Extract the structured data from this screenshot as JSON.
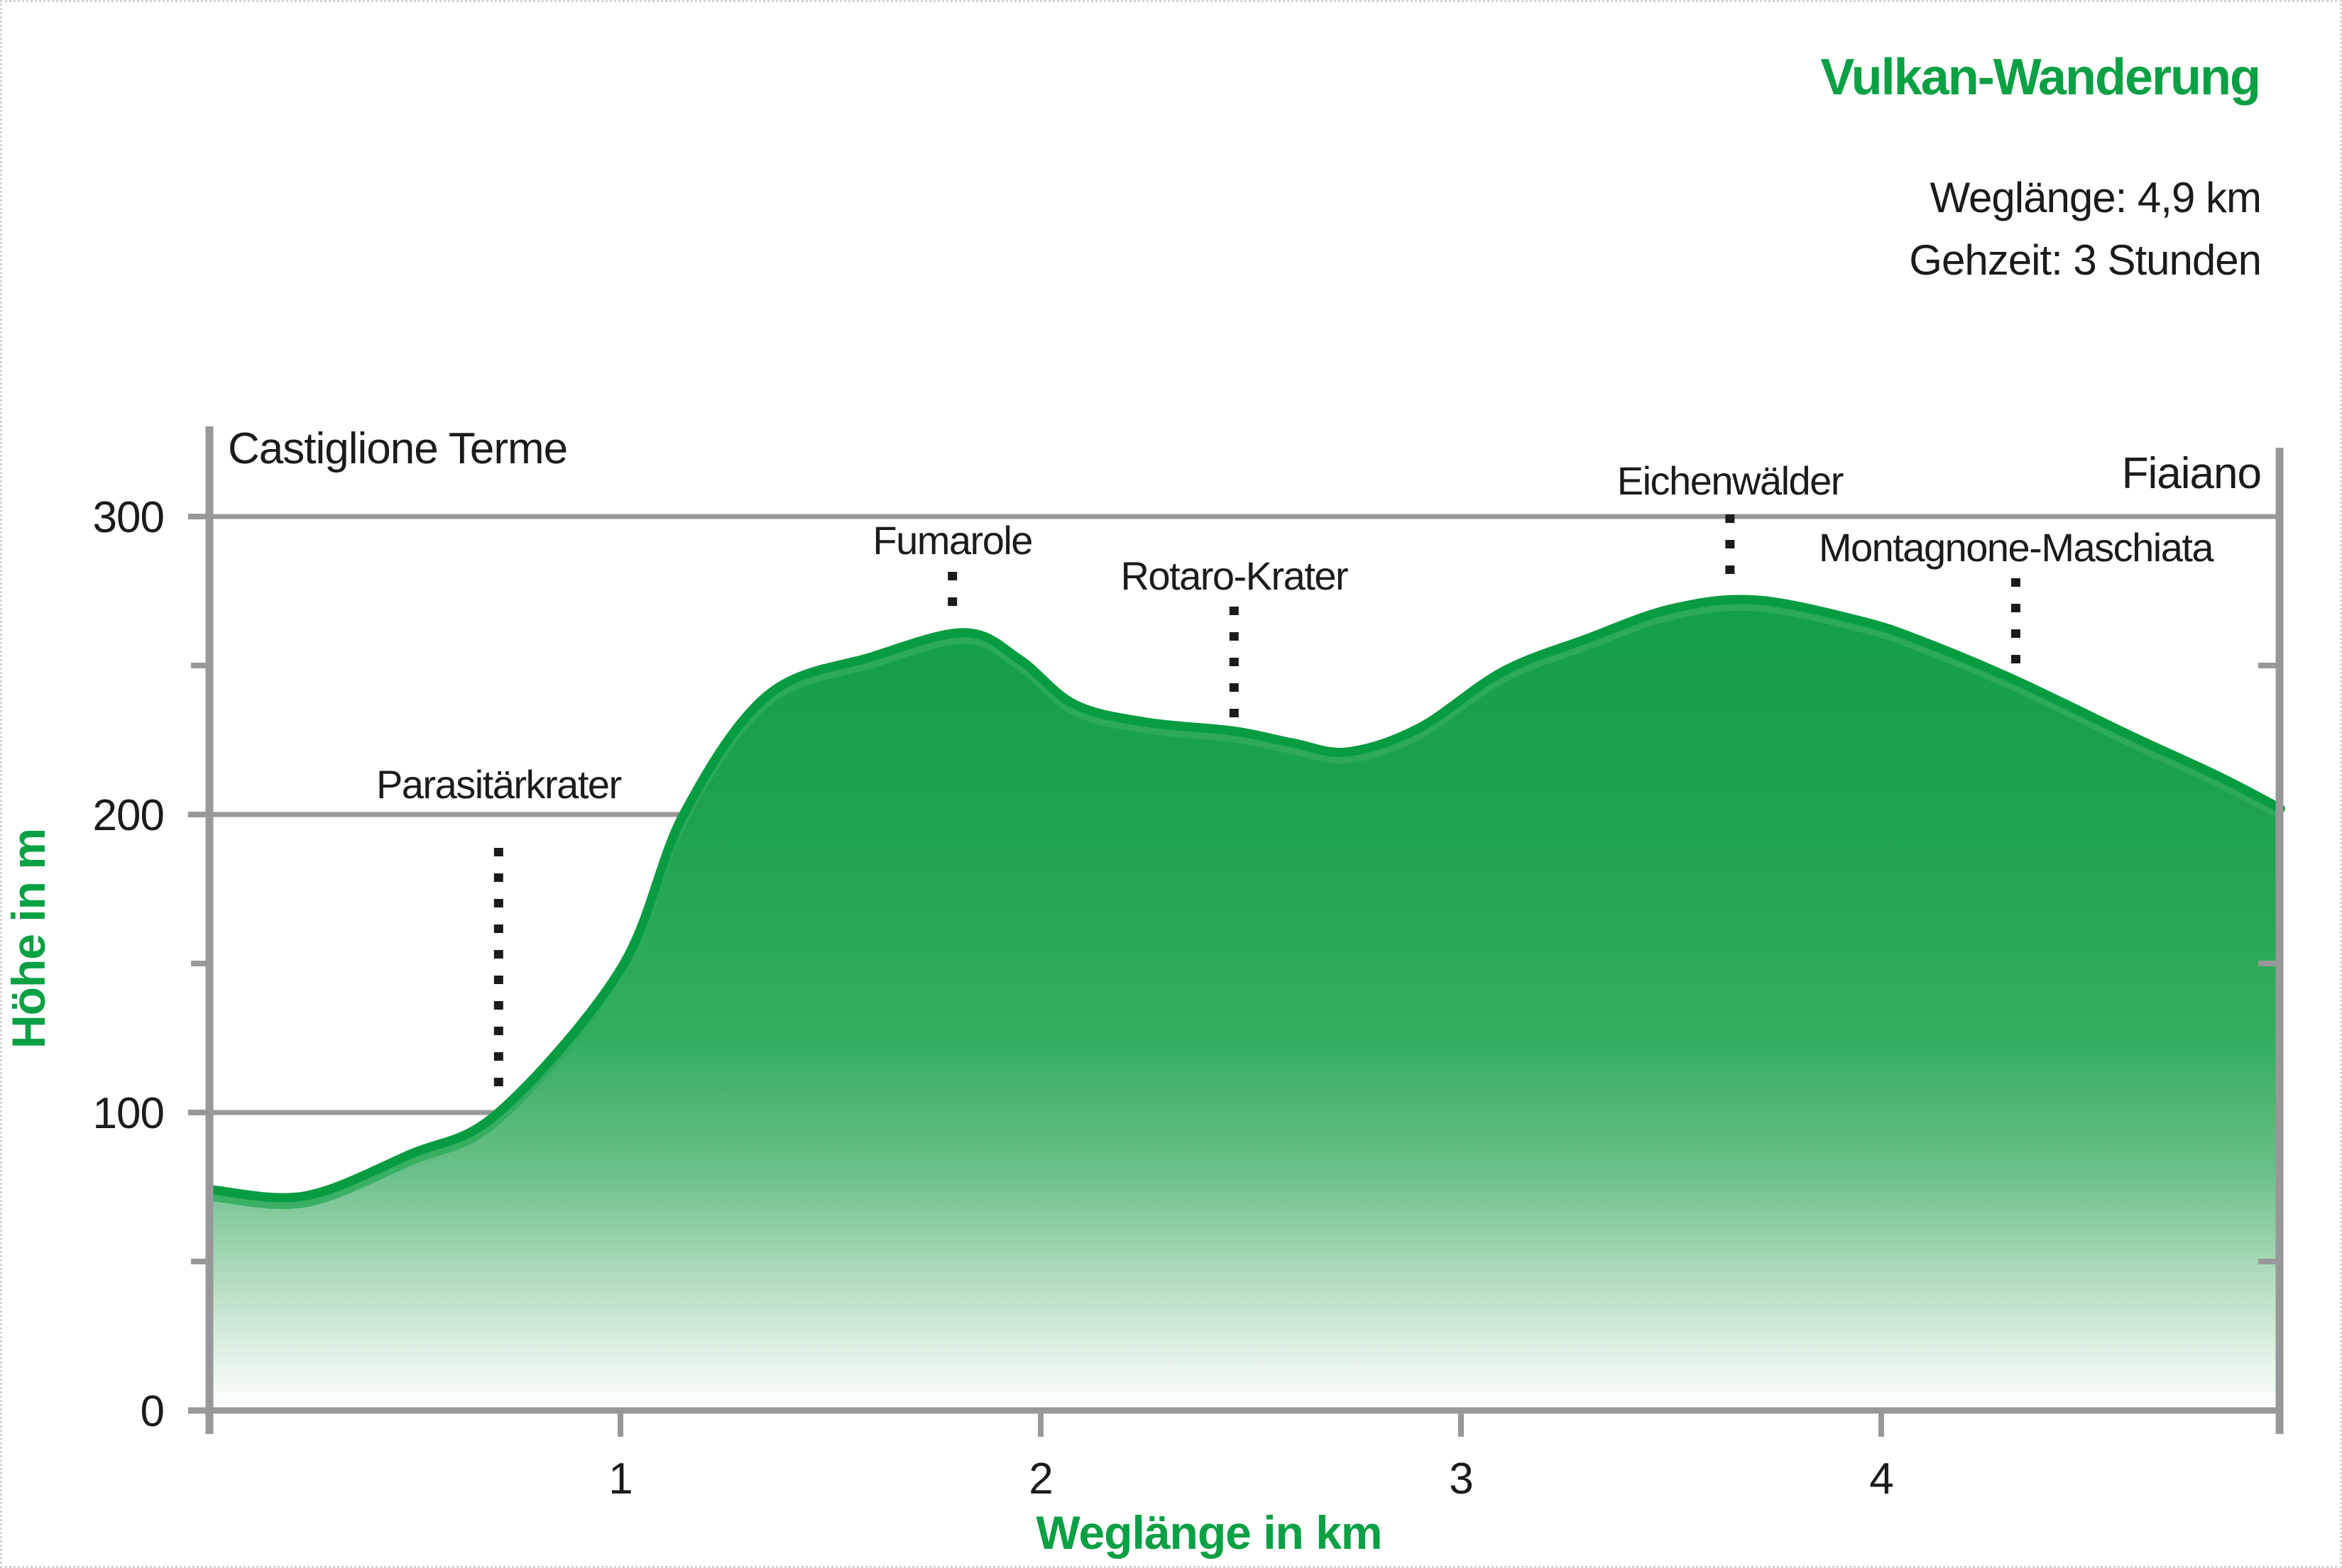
{
  "page": {
    "background": "#FFFFFF",
    "border_color": "#D3D3D3"
  },
  "header": {
    "title": "Vulkan-Wanderung",
    "route_length_line": "Weglänge: 4,9 km",
    "walking_time_line": "Gehzeit: 3 Stunden"
  },
  "chart_data": {
    "type": "area",
    "title": "Vulkan-Wanderung",
    "xlabel": "Weglänge in km",
    "ylabel": "Höhe in m",
    "xlim": [
      0,
      4.95
    ],
    "ylim": [
      0,
      330
    ],
    "x_ticks": [
      1,
      2,
      3,
      4
    ],
    "y_ticks_major": [
      0,
      100,
      200,
      300
    ],
    "y_ticks_minor": [
      50,
      150,
      250
    ],
    "grid": "horizontal-major",
    "legend": "none",
    "start_point_label": "Castiglione Terme",
    "end_point_label": "Fiaiano",
    "route_length_km": 4.9,
    "walking_time_hours": 3,
    "profile_km_m": [
      [
        0.03,
        74
      ],
      [
        0.25,
        72
      ],
      [
        0.5,
        86
      ],
      [
        0.71,
        100
      ],
      [
        1.0,
        148
      ],
      [
        1.15,
        200
      ],
      [
        1.35,
        240
      ],
      [
        1.6,
        253
      ],
      [
        1.82,
        261
      ],
      [
        1.95,
        252
      ],
      [
        2.08,
        237
      ],
      [
        2.25,
        231
      ],
      [
        2.46,
        228
      ],
      [
        2.6,
        224
      ],
      [
        2.73,
        221
      ],
      [
        2.9,
        229
      ],
      [
        3.1,
        248
      ],
      [
        3.3,
        259
      ],
      [
        3.5,
        269
      ],
      [
        3.7,
        272
      ],
      [
        3.95,
        265
      ],
      [
        4.1,
        258
      ],
      [
        4.32,
        245
      ],
      [
        4.6,
        226
      ],
      [
        4.8,
        213
      ],
      [
        4.95,
        202
      ]
    ],
    "annotations": [
      {
        "label": "Parasitärkrater",
        "km": 0.71,
        "elevation_m": 100,
        "label_baseline_y": 1122,
        "leader_top_y": 1192,
        "leader_bottom_y": 1545
      },
      {
        "label": "Fumarole",
        "km": 1.79,
        "elevation_m": 261,
        "label_baseline_y": 778,
        "leader_top_y": 803,
        "leader_bottom_y": 868
      },
      {
        "label": "Rotaro-Krater",
        "km": 2.46,
        "elevation_m": 228,
        "label_baseline_y": 828,
        "leader_top_y": 852,
        "leader_bottom_y": 1008
      },
      {
        "label": "Eichenwälder",
        "km": 3.64,
        "elevation_m": 272,
        "label_baseline_y": 694,
        "leader_top_y": 722,
        "leader_bottom_y": 830
      },
      {
        "label": "Montagnone-Maschiata",
        "km": 4.32,
        "elevation_m": 245,
        "label_baseline_y": 788,
        "leader_top_y": 812,
        "leader_bottom_y": 948
      }
    ],
    "colors": {
      "accent_green": "#0AA044",
      "curve_stroke": "#089C40",
      "curve_highlight": "#2FAC5C",
      "axis_gray": "#98989A",
      "text_black": "#1B1B1B",
      "fill_gradient": [
        {
          "offset": 0,
          "color": "#149F47"
        },
        {
          "offset": 0.26,
          "color": "#1EA24D"
        },
        {
          "offset": 0.55,
          "color": "#33AE5F"
        },
        {
          "offset": 0.71,
          "color": "#6BC089"
        },
        {
          "offset": 0.84,
          "color": "#B0DCBE"
        },
        {
          "offset": 0.95,
          "color": "#E8F5EB"
        },
        {
          "offset": 1,
          "color": "#FDFFFD"
        }
      ]
    }
  }
}
